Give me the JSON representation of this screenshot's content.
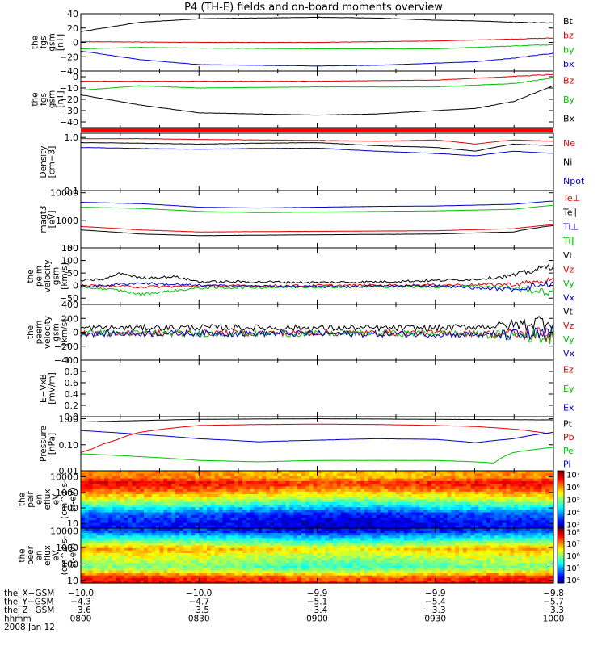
{
  "title": "P4 (TH-E) fields and on-board moments overview",
  "chart_data": [
    {
      "type": "line",
      "ylabel": [
        "the",
        "fgs",
        "gsm",
        "[nT]"
      ],
      "ylim": [
        -40,
        40
      ],
      "ticks": [
        "40",
        "20",
        "0",
        "−20",
        "−40"
      ],
      "tickvals": [
        40,
        20,
        0,
        -20,
        -40
      ],
      "scale": "linear",
      "series": [
        {
          "name": "Bt",
          "color": "#000000",
          "x": [
            8.0,
            8.25,
            8.5,
            8.75,
            9.0,
            9.25,
            9.5,
            9.67,
            9.83,
            10.0
          ],
          "y": [
            15,
            28,
            33,
            34,
            35,
            34,
            31,
            30,
            28,
            27
          ]
        },
        {
          "name": "bz",
          "color": "#e00000",
          "x": [
            8.0,
            8.5,
            9.0,
            9.5,
            10.0
          ],
          "y": [
            1,
            0,
            0,
            2,
            6
          ]
        },
        {
          "name": "by",
          "color": "#00c000",
          "x": [
            8.0,
            8.25,
            8.5,
            9.0,
            9.5,
            9.83,
            10.0
          ],
          "y": [
            -9,
            -7,
            -8,
            -9,
            -9,
            -5,
            -3
          ]
        },
        {
          "name": "bx",
          "color": "#0000d0",
          "x": [
            8.0,
            8.25,
            8.5,
            8.75,
            9.0,
            9.25,
            9.5,
            9.67,
            9.83,
            10.0
          ],
          "y": [
            -12,
            -24,
            -31,
            -32,
            -33,
            -32,
            -29,
            -27,
            -22,
            -15
          ]
        }
      ]
    },
    {
      "type": "line",
      "ylabel": [
        "the",
        "fgs",
        "gsm",
        "[nT]"
      ],
      "ylim": [
        -45,
        5
      ],
      "ticks": [
        "0",
        "−10",
        "−20",
        "−30",
        "−40"
      ],
      "tickvals": [
        0,
        -10,
        -20,
        -30,
        -40
      ],
      "scale": "linear",
      "series": [
        {
          "name": "Bz",
          "color": "#e00000",
          "x": [
            8.0,
            8.5,
            9.0,
            9.5,
            10.0
          ],
          "y": [
            -4,
            -4,
            -4,
            -3,
            2
          ]
        },
        {
          "name": "By",
          "color": "#00c000",
          "x": [
            8.0,
            8.25,
            8.5,
            9.0,
            9.5,
            9.83,
            10.0
          ],
          "y": [
            -12,
            -8,
            -10,
            -9,
            -9,
            -6,
            -1
          ]
        },
        {
          "name": "Bx",
          "color": "#000000",
          "x": [
            8.0,
            8.25,
            8.5,
            8.75,
            9.0,
            9.25,
            9.5,
            9.67,
            9.83,
            10.0
          ],
          "y": [
            -16,
            -25,
            -32,
            -33,
            -34,
            -33,
            -30,
            -28,
            -22,
            -8
          ]
        }
      ]
    },
    {
      "type": "line",
      "ylabel": [
        "Density",
        "[cm−3]"
      ],
      "ylim": [
        0.1,
        1.2
      ],
      "ticks": [
        "1.0",
        "0.1"
      ],
      "tickvals": [
        1.0,
        0.1
      ],
      "scale": "log",
      "series": [
        {
          "name": "Ne",
          "color": "#e00000",
          "x": [
            8.0,
            8.25,
            8.5,
            8.75,
            9.0,
            9.25,
            9.5,
            9.67,
            9.83,
            10.0
          ],
          "y": [
            0.95,
            0.95,
            0.92,
            0.9,
            0.88,
            0.85,
            0.9,
            0.75,
            0.9,
            0.85
          ]
        },
        {
          "name": "Ni",
          "color": "#000000",
          "x": [
            8.0,
            8.25,
            8.5,
            8.75,
            9.0,
            9.25,
            9.5,
            9.67,
            9.83,
            10.0
          ],
          "y": [
            0.8,
            0.78,
            0.75,
            0.78,
            0.8,
            0.7,
            0.65,
            0.55,
            0.75,
            0.7
          ]
        },
        {
          "name": "Npot",
          "color": "#0000d0",
          "x": [
            8.0,
            8.25,
            8.5,
            8.75,
            9.0,
            9.25,
            9.5,
            9.67,
            9.83,
            10.0
          ],
          "y": [
            0.65,
            0.62,
            0.6,
            0.62,
            0.63,
            0.55,
            0.5,
            0.45,
            0.55,
            0.5
          ]
        }
      ]
    },
    {
      "type": "line",
      "ylabel": [
        "magt3",
        "[eV]"
      ],
      "ylim": [
        100,
        12000
      ],
      "ticks": [
        "10000",
        "1000",
        "100"
      ],
      "tickvals": [
        10000,
        1000,
        100
      ],
      "scale": "log",
      "series": [
        {
          "name": "Te⊥",
          "color": "#e00000",
          "x": [
            8.0,
            8.25,
            8.5,
            9.0,
            9.5,
            9.83,
            10.0
          ],
          "y": [
            600,
            450,
            380,
            400,
            420,
            500,
            700
          ]
        },
        {
          "name": "Te∥",
          "color": "#000000",
          "x": [
            8.0,
            8.25,
            8.5,
            9.0,
            9.5,
            9.83,
            10.0
          ],
          "y": [
            450,
            320,
            280,
            300,
            320,
            380,
            650
          ]
        },
        {
          "name": "Ti⊥",
          "color": "#0000d0",
          "x": [
            8.0,
            8.25,
            8.5,
            8.75,
            9.0,
            9.25,
            9.5,
            9.83,
            10.0
          ],
          "y": [
            4500,
            4000,
            3000,
            2800,
            3000,
            3200,
            3300,
            3800,
            5000
          ]
        },
        {
          "name": "Ti∥",
          "color": "#00c000",
          "x": [
            8.0,
            8.25,
            8.5,
            8.75,
            9.0,
            9.25,
            9.5,
            9.83,
            10.0
          ],
          "y": [
            3000,
            2700,
            2100,
            1900,
            2000,
            2100,
            2200,
            2500,
            3500
          ]
        }
      ]
    },
    {
      "type": "line",
      "ylabel": [
        "the",
        "peim",
        "velocity",
        "gsm",
        "[km/s]"
      ],
      "ylim": [
        -75,
        150
      ],
      "ticks": [
        "150",
        "100",
        "50",
        "0",
        "−50"
      ],
      "tickvals": [
        150,
        100,
        50,
        0,
        -50
      ],
      "scale": "linear",
      "noise": 0.18,
      "series": [
        {
          "name": "Vt",
          "color": "#000000",
          "x": [
            8.0,
            8.1,
            8.17,
            8.25,
            8.4,
            8.5,
            8.75,
            9.0,
            9.25,
            9.5,
            9.67,
            9.83,
            10.0
          ],
          "y": [
            20,
            25,
            50,
            30,
            35,
            15,
            15,
            12,
            15,
            20,
            25,
            40,
            80
          ]
        },
        {
          "name": "Vz",
          "color": "#e00000",
          "x": [
            8.0,
            8.25,
            8.5,
            9.0,
            9.5,
            9.83,
            10.0
          ],
          "y": [
            0,
            -5,
            -2,
            0,
            2,
            5,
            20
          ]
        },
        {
          "name": "Vy",
          "color": "#00c000",
          "x": [
            8.0,
            8.17,
            8.25,
            8.5,
            9.0,
            9.5,
            9.67,
            9.83,
            10.0
          ],
          "y": [
            -5,
            -20,
            -35,
            -10,
            -5,
            -5,
            0,
            -10,
            -30
          ]
        },
        {
          "name": "Vx",
          "color": "#0000d0",
          "x": [
            8.0,
            8.25,
            8.5,
            9.0,
            9.5,
            9.67,
            9.83,
            10.0
          ],
          "y": [
            -5,
            10,
            0,
            -5,
            0,
            -10,
            -15,
            10
          ]
        }
      ]
    },
    {
      "type": "line",
      "ylabel": [
        "the",
        "peem",
        "velocity",
        "gsm",
        "[km/s]"
      ],
      "ylim": [
        -400,
        400
      ],
      "ticks": [
        "400",
        "200",
        "0",
        "−200",
        "−400"
      ],
      "tickvals": [
        400,
        200,
        0,
        -200,
        -400
      ],
      "scale": "linear",
      "noise": 0.45,
      "series": [
        {
          "name": "Vt",
          "color": "#000000",
          "x": [
            8.0,
            8.5,
            9.0,
            9.5,
            9.83,
            10.0
          ],
          "y": [
            60,
            70,
            60,
            60,
            100,
            180
          ]
        },
        {
          "name": "Vz",
          "color": "#e00000",
          "x": [
            8.0,
            8.5,
            9.0,
            9.5,
            10.0
          ],
          "y": [
            -20,
            -10,
            -10,
            -10,
            -30
          ]
        },
        {
          "name": "Vy",
          "color": "#00c000",
          "x": [
            8.0,
            8.5,
            9.0,
            9.5,
            10.0
          ],
          "y": [
            -10,
            -20,
            -20,
            -15,
            -60
          ]
        },
        {
          "name": "Vx",
          "color": "#0000d0",
          "x": [
            8.0,
            8.5,
            9.0,
            9.5,
            10.0
          ],
          "y": [
            -20,
            -15,
            -20,
            -30,
            -40
          ]
        }
      ]
    },
    {
      "type": "line",
      "ylabel": [
        "E−VxB",
        "[mV/m]"
      ],
      "ylim": [
        0.0,
        1.0
      ],
      "ticks": [
        "1.0",
        "0.8",
        "0.6",
        "0.4",
        "0.2",
        "0.0"
      ],
      "tickvals": [
        1.0,
        0.8,
        0.6,
        0.4,
        0.2,
        0.0
      ],
      "scale": "linear",
      "series": [
        {
          "name": "Ez",
          "color": "#e00000",
          "x": [],
          "y": []
        },
        {
          "name": "Ey",
          "color": "#00c000",
          "x": [],
          "y": []
        },
        {
          "name": "Ex",
          "color": "#0000d0",
          "x": [],
          "y": []
        }
      ]
    },
    {
      "type": "line",
      "ylabel": [
        "Pressure",
        "[nPa]"
      ],
      "ylim": [
        0.01,
        1.2
      ],
      "ticks": [
        "1.00",
        "0.10",
        "0.01"
      ],
      "tickvals": [
        1.0,
        0.1,
        0.01
      ],
      "scale": "log",
      "series": [
        {
          "name": "Pt",
          "color": "#000000",
          "x": [
            8.0,
            8.25,
            8.5,
            9.0,
            9.5,
            10.0
          ],
          "y": [
            0.75,
            0.85,
            0.95,
            1.0,
            0.95,
            0.9
          ]
        },
        {
          "name": "Pb",
          "color": "#e00000",
          "x": [
            8.0,
            8.05,
            8.15,
            8.25,
            8.4,
            8.5,
            8.75,
            9.0,
            9.25,
            9.5,
            9.67,
            9.83,
            10.0
          ],
          "y": [
            0.05,
            0.07,
            0.15,
            0.3,
            0.45,
            0.55,
            0.6,
            0.62,
            0.6,
            0.55,
            0.5,
            0.4,
            0.25
          ]
        },
        {
          "name": "Pe",
          "color": "#00c000",
          "x": [
            8.0,
            8.25,
            8.5,
            8.75,
            9.0,
            9.25,
            9.5,
            9.67,
            9.75,
            9.83,
            10.0
          ],
          "y": [
            0.045,
            0.035,
            0.025,
            0.022,
            0.025,
            0.025,
            0.025,
            0.022,
            0.02,
            0.05,
            0.08
          ]
        },
        {
          "name": "Pi",
          "color": "#0000d0",
          "x": [
            8.0,
            8.25,
            8.5,
            8.75,
            9.0,
            9.25,
            9.5,
            9.67,
            9.83,
            10.0
          ],
          "y": [
            0.35,
            0.25,
            0.17,
            0.13,
            0.15,
            0.17,
            0.16,
            0.12,
            0.17,
            0.3
          ]
        }
      ]
    },
    {
      "type": "heatmap",
      "ylabel": [
        "the",
        "peir",
        "en",
        "eflux",
        "eV",
        "(cm^2-s-",
        "sr-eV)"
      ],
      "ylim": [
        5,
        25000
      ],
      "ticks": [
        "10000",
        "1000",
        "100",
        "10"
      ],
      "tickvals": [
        10000,
        1000,
        100,
        10
      ],
      "scale": "log",
      "colorbar": {
        "ticks": [
          "10⁷",
          "10⁶",
          "10⁵",
          "10⁴",
          "10³"
        ],
        "range": [
          2.5,
          7.3
        ]
      },
      "bands": [
        {
          "energy": 10000,
          "level": 0.75
        },
        {
          "energy": 4000,
          "level": 0.9
        },
        {
          "energy": 1500,
          "level": 0.8
        },
        {
          "energy": 500,
          "level": 0.65
        },
        {
          "energy": 150,
          "level": 0.45
        },
        {
          "energy": 40,
          "level": 0.22
        },
        {
          "energy": 10,
          "level": 0.15
        }
      ]
    },
    {
      "type": "heatmap",
      "ylabel": [
        "the",
        "peer",
        "en",
        "eflux",
        "eV",
        "(cm^2-s-",
        "sr-eV)"
      ],
      "ylim": [
        7,
        15000
      ],
      "ticks": [
        "10000",
        "1000",
        "100",
        "10"
      ],
      "tickvals": [
        10000,
        1000,
        100,
        10
      ],
      "scale": "log",
      "colorbar": {
        "ticks": [
          "10⁸",
          "10⁷",
          "10⁶",
          "10⁵",
          "10⁴"
        ],
        "range": [
          3.6,
          8.4
        ]
      },
      "bands": [
        {
          "energy": 10000,
          "level": 0.2
        },
        {
          "energy": 3000,
          "level": 0.45
        },
        {
          "energy": 800,
          "level": 0.72
        },
        {
          "energy": 250,
          "level": 0.6
        },
        {
          "energy": 60,
          "level": 0.5
        },
        {
          "energy": 15,
          "level": 0.85
        },
        {
          "energy": 8,
          "level": 0.9
        }
      ]
    }
  ],
  "xaxis": {
    "range": [
      8.0,
      10.0
    ],
    "ticks": [
      8.0,
      8.5,
      9.0,
      9.5,
      10.0
    ],
    "rows": [
      {
        "label": "the_X−GSM",
        "values": [
          "−10.0",
          "−10.0",
          "−9.9",
          "−9.9",
          "−9.8"
        ]
      },
      {
        "label": "the_Y−GSM",
        "values": [
          "−4.3",
          "−4.7",
          "−5.1",
          "−5.4",
          "−5.7"
        ]
      },
      {
        "label": "the_Z−GSM",
        "values": [
          "−3.6",
          "−3.5",
          "−3.4",
          "−3.3",
          "−3.3"
        ]
      },
      {
        "label": "hhmm",
        "values": [
          "0800",
          "0830",
          "0900",
          "0930",
          "1000"
        ]
      }
    ],
    "date": "2008 Jan 12"
  }
}
